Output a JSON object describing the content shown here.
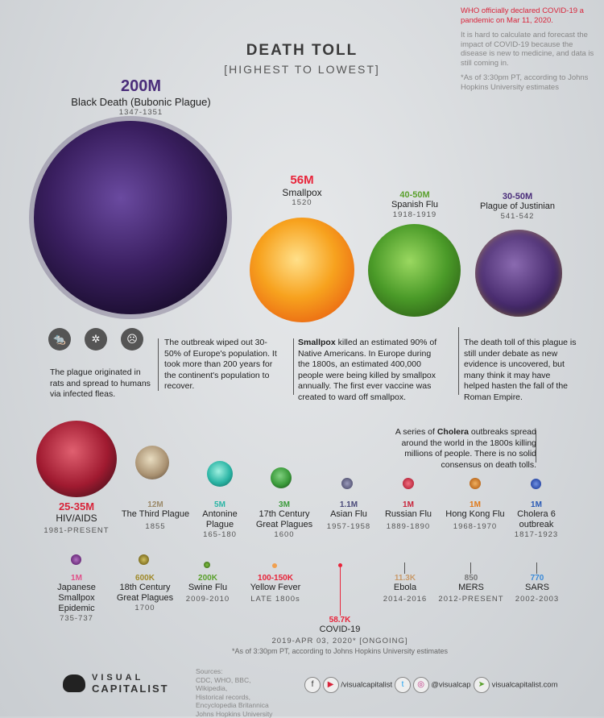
{
  "header": {
    "title": "DEATH TOLL",
    "subtitle": "[HIGHEST TO LOWEST]"
  },
  "note": {
    "who": "WHO officially declared COVID-19 a pandemic on Mar 11, 2020.",
    "hard": "It is hard to calculate and forecast the impact of COVID-19 because the disease is new to medicine, and data is still coming in.",
    "asof": "*As of 3:30pm PT, according to Johns Hopkins University estimates"
  },
  "pandemics": [
    {
      "toll": "200M",
      "name": "Black Death (Bubonic Plague)",
      "years": "1347-1351",
      "color": "#5a2d8a"
    },
    {
      "toll": "56M",
      "name": "Smallpox",
      "years": "1520",
      "color": "#e8243a"
    },
    {
      "toll": "40-50M",
      "name": "Spanish Flu",
      "years": "1918-1919",
      "color": "#5aa02c"
    },
    {
      "toll": "30-50M",
      "name": "Plague of Justinian",
      "years": "541-542",
      "color": "#4a2d7a"
    },
    {
      "toll": "25-35M",
      "name": "HIV/AIDS",
      "years": "1981-PRESENT",
      "color": "#d8243a"
    },
    {
      "toll": "12M",
      "name": "The Third Plague",
      "years": "1855",
      "color": "#9c8a6a"
    },
    {
      "toll": "5M",
      "name": "Antonine Plague",
      "years": "165-180",
      "color": "#2bb5a5"
    },
    {
      "toll": "3M",
      "name": "17th Century Great Plagues",
      "years": "1600",
      "color": "#3a9a3a"
    },
    {
      "toll": "1.1M",
      "name": "Asian Flu",
      "years": "1957-1958",
      "color": "#4a4a7a"
    },
    {
      "toll": "1M",
      "name": "Russian Flu",
      "years": "1889-1890",
      "color": "#c8243a"
    },
    {
      "toll": "1M",
      "name": "Hong Kong Flu",
      "years": "1968-1970",
      "color": "#e07a1a"
    },
    {
      "toll": "1M",
      "name": "Cholera 6 outbreak",
      "years": "1817-1923",
      "color": "#2a5ab5"
    },
    {
      "toll": "1M",
      "name": "Japanese Smallpox Epidemic",
      "years": "735-737",
      "color": "#e0508a"
    },
    {
      "toll": "600K",
      "name": "18th Century Great Plagues",
      "years": "1700",
      "color": "#a08a2a"
    },
    {
      "toll": "200K",
      "name": "Swine Flu",
      "years": "2009-2010",
      "color": "#5aa02c"
    },
    {
      "toll": "100-150K",
      "name": "Yellow Fever",
      "years": "LATE 1800s",
      "color": "#e8243a"
    },
    {
      "toll": "58.7K",
      "name": "COVID-19",
      "years": "2019-APR 03, 2020* [ONGOING]",
      "color": "#e8243a"
    },
    {
      "toll": "11.3K",
      "name": "Ebola",
      "years": "2014-2016",
      "color": "#c89a6a"
    },
    {
      "toll": "850",
      "name": "MERS",
      "years": "2012-PRESENT",
      "color": "#777777"
    },
    {
      "toll": "770",
      "name": "SARS",
      "years": "2002-2003",
      "color": "#3a8ad8"
    }
  ],
  "descriptions": {
    "plague_origin": "The plague originated in rats and spread to humans via infected fleas.",
    "black_death": "The outbreak wiped out 30-50% of Europe's population. It took more than 200 years for the continent's population to recover.",
    "smallpox_bold": "Smallpox",
    "smallpox": " killed an estimated 90% of Native Americans. In Europe during the 1800s, an estimated 400,000 people were being killed by smallpox annually. The first ever vaccine was created to ward off smallpox.",
    "justinian": "The death toll of this plague is still under debate as new evidence is uncovered, but many think it may have helped hasten the fall of the Roman Empire.",
    "cholera_pre": "A series of ",
    "cholera_bold": "Cholera",
    "cholera_post": " outbreaks spread around the world in the 1800s killing millions of people. There is no solid consensus on death tolls.",
    "covid_asof": "*As of 3:30pm PT, according to Johns Hopkins University estimates"
  },
  "footer": {
    "logo_line1": "VISUAL",
    "logo_line2": "CAPITALIST",
    "sources": "Sources:\nCDC, WHO, BBC,\nWikipedia,\nHistorical records,\nEncyclopedia Britannica\nJohns Hopkins University",
    "youtube": "/visualcapitalist",
    "instagram": "@visualcap",
    "web": "visualcapitalist.com"
  }
}
